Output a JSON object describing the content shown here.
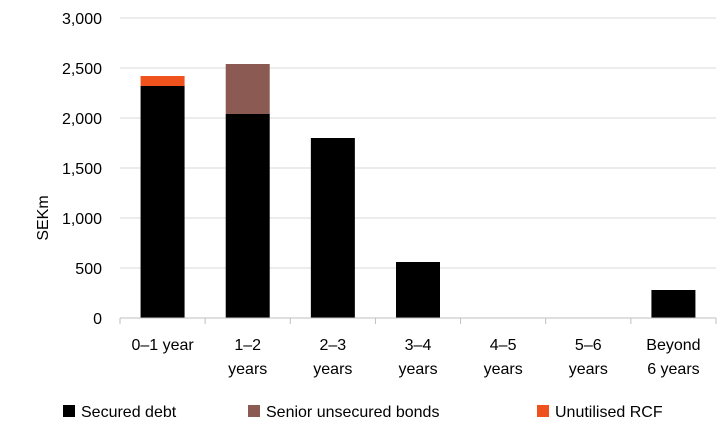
{
  "chart_data": {
    "type": "bar",
    "stacked": true,
    "ylabel": "SEKm",
    "xlabel": "",
    "ylim": [
      0,
      3000
    ],
    "yticks": [
      0,
      500,
      1000,
      1500,
      2000,
      2500,
      3000
    ],
    "ytick_labels": [
      "0",
      "500",
      "1,000",
      "1,500",
      "2,000",
      "2,500",
      "3,000"
    ],
    "grid": true,
    "legend_position": "bottom",
    "categories": [
      [
        "0–1 year"
      ],
      [
        "1–2",
        "years"
      ],
      [
        "2–3",
        "years"
      ],
      [
        "3–4",
        "years"
      ],
      [
        "4–5",
        "years"
      ],
      [
        "5–6",
        "years"
      ],
      [
        "Beyond",
        "6 years"
      ]
    ],
    "series": [
      {
        "name": "Secured debt",
        "color": "#000000",
        "values": [
          2320,
          2040,
          1800,
          560,
          0,
          0,
          280
        ]
      },
      {
        "name": "Senior unsecured bonds",
        "color": "#8B5A52",
        "values": [
          0,
          500,
          0,
          0,
          0,
          0,
          0
        ]
      },
      {
        "name": "Unutilised RCF",
        "color": "#F0521E",
        "values": [
          100,
          0,
          0,
          0,
          0,
          0,
          0
        ]
      }
    ]
  }
}
